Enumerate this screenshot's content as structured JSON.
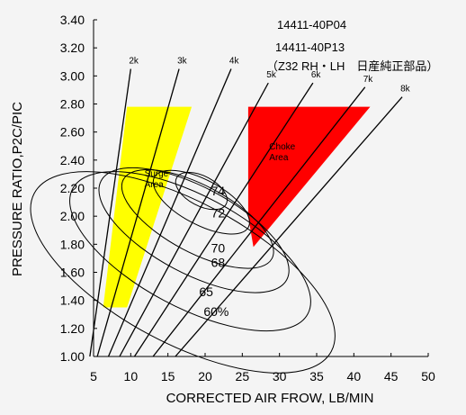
{
  "chart_data": {
    "type": "line",
    "title": "",
    "part_numbers": [
      "14411-40P04",
      "14411-40P13",
      "（Z32 RH・LH　日産純正部品）"
    ],
    "xlabel": "CORRECTED AIR FROW, LB/MIN",
    "ylabel": "PRESSURE RATIO,P2C/PIC",
    "xlim": [
      5,
      50
    ],
    "ylim": [
      1.0,
      3.4
    ],
    "x_ticks": [
      "5",
      "10",
      "15",
      "20",
      "25",
      "30",
      "35",
      "40",
      "45",
      "50"
    ],
    "y_ticks": [
      "1.00",
      "1.20",
      "1.40",
      "1.60",
      "1.80",
      "2.00",
      "2.20",
      "2.40",
      "2.60",
      "2.80",
      "3.00",
      "3.20",
      "3.40"
    ],
    "grid": false,
    "regions": [
      {
        "name": "Surge Area",
        "label_lines": [
          "Surge",
          "Area"
        ],
        "color": "#ffff00",
        "points": [
          [
            6.3,
            1.35
          ],
          [
            9.5,
            2.78
          ],
          [
            18.2,
            2.78
          ],
          [
            9.5,
            1.35
          ]
        ]
      },
      {
        "name": "Choke Area",
        "label_lines": [
          "Choke",
          "Area"
        ],
        "color": "#ff0000",
        "points": [
          [
            25.8,
            2.78
          ],
          [
            42.2,
            2.78
          ],
          [
            26.5,
            1.78
          ],
          [
            25.8,
            2.0
          ]
        ]
      }
    ],
    "speed_lines": [
      {
        "label": "2k",
        "x0": 4.5,
        "y0": 1.0,
        "x1": 10.0,
        "y1": 3.05
      },
      {
        "label": "3k",
        "x0": 5.5,
        "y0": 1.0,
        "x1": 16.5,
        "y1": 3.05
      },
      {
        "label": "4k",
        "x0": 7.0,
        "y0": 1.0,
        "x1": 23.5,
        "y1": 3.05
      },
      {
        "label": "5k",
        "x0": 8.5,
        "y0": 1.0,
        "x1": 28.5,
        "y1": 2.95
      },
      {
        "label": "6k",
        "x0": 10.5,
        "y0": 1.0,
        "x1": 34.5,
        "y1": 2.95
      },
      {
        "label": "7k",
        "x0": 13.0,
        "y0": 1.0,
        "x1": 41.5,
        "y1": 2.92
      },
      {
        "label": "8k",
        "x0": 16.0,
        "y0": 1.0,
        "x1": 46.5,
        "y1": 2.85
      }
    ],
    "efficiency_islands": [
      {
        "label": "74",
        "cx": 19.5,
        "cy": 2.18,
        "rx": 2.0,
        "ry": 0.2,
        "label_x": 20.8,
        "label_y": 2.15
      },
      {
        "label": "72",
        "cx": 19.5,
        "cy": 2.1,
        "rx": 3.0,
        "ry": 0.38,
        "label_x": 20.8,
        "label_y": 1.99
      },
      {
        "label": "70",
        "cx": 19.0,
        "cy": 1.98,
        "rx": 4.5,
        "ry": 0.6,
        "label_x": 20.8,
        "label_y": 1.74
      },
      {
        "label": "68",
        "cx": 18.5,
        "cy": 1.9,
        "rx": 5.8,
        "ry": 0.75,
        "label_x": 20.8,
        "label_y": 1.64
      },
      {
        "label": "65",
        "cx": 18.0,
        "cy": 1.75,
        "rx": 7.5,
        "ry": 0.95,
        "label_x": 19.2,
        "label_y": 1.43
      },
      {
        "label": "60%",
        "cx": 17.0,
        "cy": 1.6,
        "rx": 9.5,
        "ry": 1.2,
        "label_x": 19.8,
        "label_y": 1.29
      }
    ]
  }
}
